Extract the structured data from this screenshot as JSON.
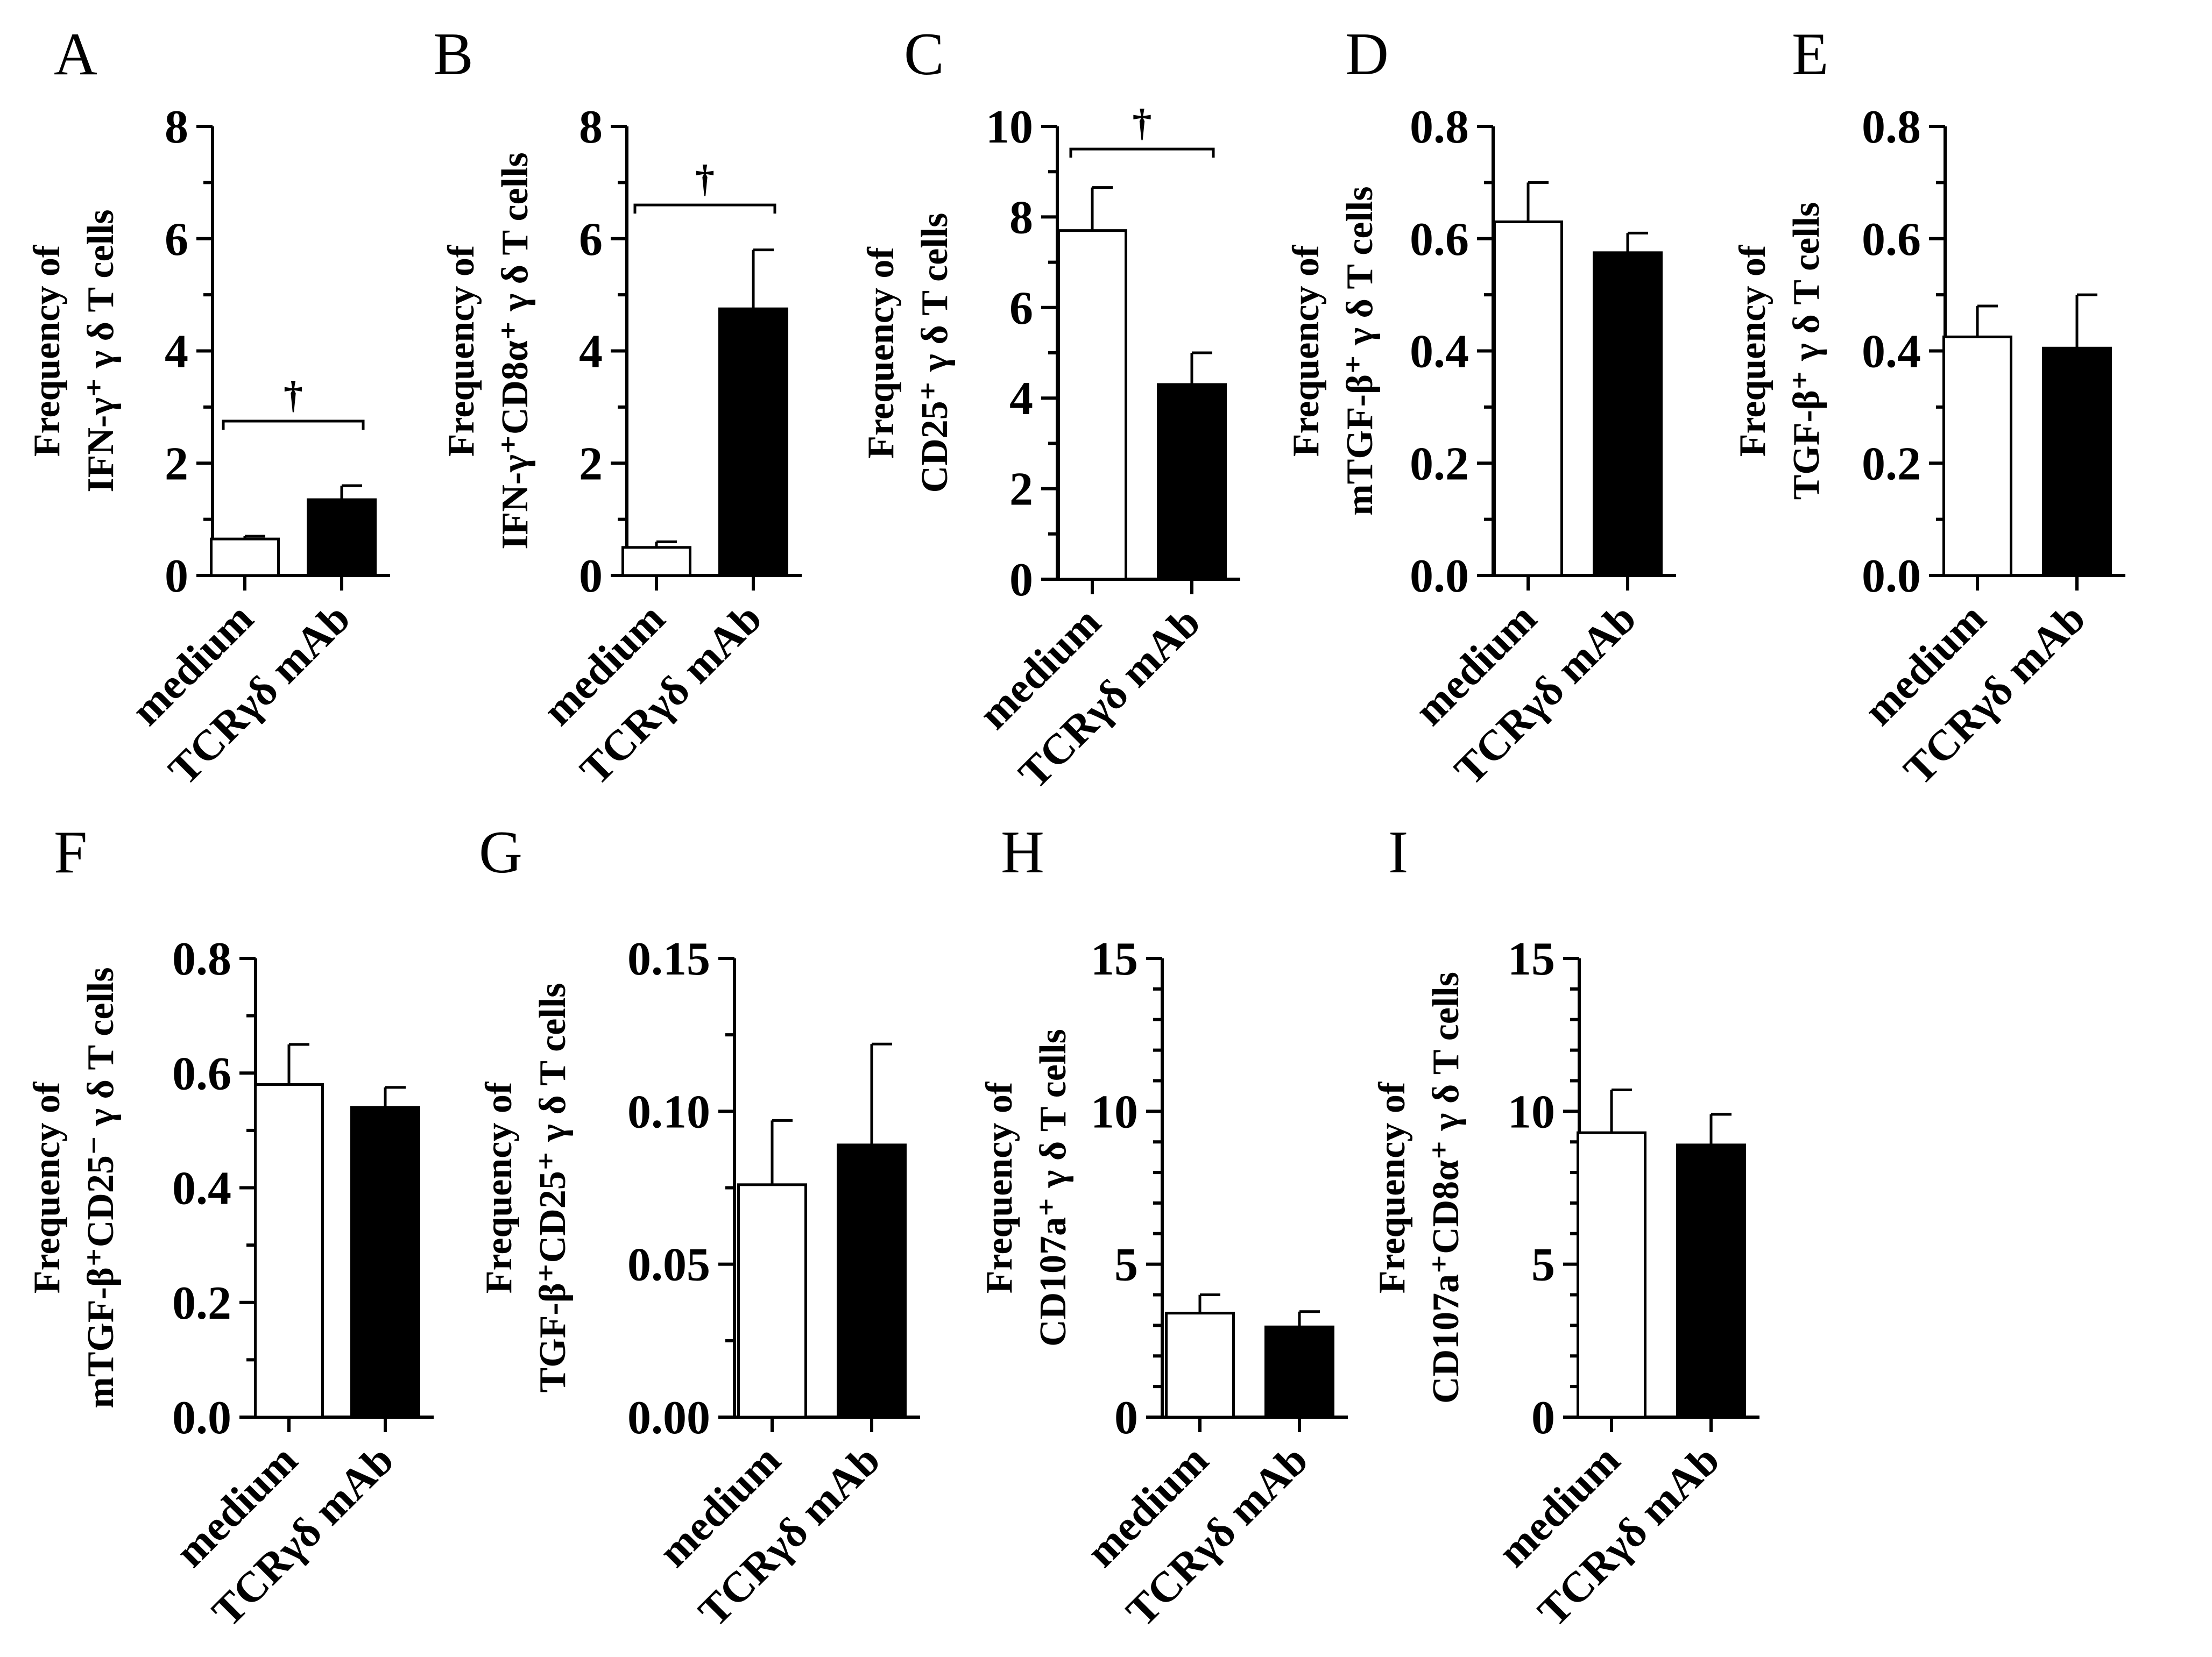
{
  "figure": {
    "panels": [
      "A",
      "B",
      "C",
      "D",
      "E",
      "F",
      "G",
      "H",
      "I"
    ]
  },
  "chart_data": [
    {
      "panel": "A",
      "type": "bar",
      "categories": [
        "medium",
        "TCRγδ mAb"
      ],
      "values": [
        0.65,
        1.35
      ],
      "errors": [
        0.05,
        0.25
      ],
      "ylabel_lines": [
        "Frequency of",
        "IFN-γ⁺ γ δ T cells"
      ],
      "ylim": [
        0,
        8
      ],
      "yticks": [
        "0",
        "2",
        "4",
        "6",
        "8"
      ],
      "minor_per_major": 2,
      "significance": {
        "symbol": "†",
        "y": 2.75
      }
    },
    {
      "panel": "B",
      "type": "bar",
      "categories": [
        "medium",
        "TCRγδ mAb"
      ],
      "values": [
        0.5,
        4.75
      ],
      "errors": [
        0.1,
        1.05
      ],
      "ylabel_lines": [
        "Frequency of",
        "IFN-γ⁺CD8α⁺ γ δ T cells"
      ],
      "ylim": [
        0,
        8
      ],
      "yticks": [
        "0",
        "2",
        "4",
        "6",
        "8"
      ],
      "minor_per_major": 2,
      "significance": {
        "symbol": "†",
        "y": 6.6
      }
    },
    {
      "panel": "C",
      "type": "bar",
      "categories": [
        "medium",
        "TCRγδ mAb"
      ],
      "values": [
        7.7,
        4.3
      ],
      "errors": [
        0.95,
        0.7
      ],
      "ylabel_lines": [
        "Frequency of",
        "CD25⁺ γ δ T cells"
      ],
      "ylim": [
        0,
        10
      ],
      "yticks": [
        "0",
        "2",
        "4",
        "6",
        "8",
        "10"
      ],
      "minor_per_major": 2,
      "significance": {
        "symbol": "†",
        "y": 9.5
      }
    },
    {
      "panel": "D",
      "type": "bar",
      "categories": [
        "medium",
        "TCRγδ mAb"
      ],
      "values": [
        0.63,
        0.575
      ],
      "errors": [
        0.07,
        0.035
      ],
      "ylabel_lines": [
        "Frequency of",
        "mTGF-β⁺ γ δ T cells"
      ],
      "ylim": [
        0,
        0.8
      ],
      "yticks": [
        "0.0",
        "0.2",
        "0.4",
        "0.6",
        "0.8"
      ],
      "minor_per_major": 2
    },
    {
      "panel": "E",
      "type": "bar",
      "categories": [
        "medium",
        "TCRγδ mAb"
      ],
      "values": [
        0.425,
        0.405
      ],
      "errors": [
        0.055,
        0.095
      ],
      "ylabel_lines": [
        "Frequency of",
        "TGF-β⁺ γ δ T cells"
      ],
      "ylim": [
        0,
        0.8
      ],
      "yticks": [
        "0.0",
        "0.2",
        "0.4",
        "0.6",
        "0.8"
      ],
      "minor_per_major": 2
    },
    {
      "panel": "F",
      "type": "bar",
      "categories": [
        "medium",
        "TCRγδ mAb"
      ],
      "values": [
        0.58,
        0.54
      ],
      "errors": [
        0.07,
        0.035
      ],
      "ylabel_lines": [
        "Frequency of",
        "mTGF-β⁺CD25⁻ γ δ T cells"
      ],
      "ylim": [
        0,
        0.8
      ],
      "yticks": [
        "0.0",
        "0.2",
        "0.4",
        "0.6",
        "0.8"
      ],
      "minor_per_major": 2
    },
    {
      "panel": "G",
      "type": "bar",
      "categories": [
        "medium",
        "TCRγδ mAb"
      ],
      "values": [
        0.076,
        0.089
      ],
      "errors": [
        0.021,
        0.033
      ],
      "ylabel_lines": [
        "Frequency of",
        "TGF-β⁺CD25⁺ γ δ T cells"
      ],
      "ylim": [
        0,
        0.15
      ],
      "yticks": [
        "0.00",
        "0.05",
        "0.10",
        "0.15"
      ],
      "minor_per_major": 2
    },
    {
      "panel": "H",
      "type": "bar",
      "categories": [
        "medium",
        "TCRγδ mAb"
      ],
      "values": [
        3.4,
        2.95
      ],
      "errors": [
        0.6,
        0.5
      ],
      "ylabel_lines": [
        "Frequency of",
        "CD107a⁺ γ δ T cells"
      ],
      "ylim": [
        0,
        15
      ],
      "yticks": [
        "0",
        "5",
        "10",
        "15"
      ],
      "minor_per_major": 5
    },
    {
      "panel": "I",
      "type": "bar",
      "categories": [
        "medium",
        "TCRγδ mAb"
      ],
      "values": [
        9.3,
        8.9
      ],
      "errors": [
        1.4,
        1.0
      ],
      "ylabel_lines": [
        "Frequency of",
        "CD107a⁺CD8α⁺ γ δ T cells"
      ],
      "ylim": [
        0,
        15
      ],
      "yticks": [
        "0",
        "5",
        "10",
        "15"
      ],
      "minor_per_major": 5
    }
  ]
}
